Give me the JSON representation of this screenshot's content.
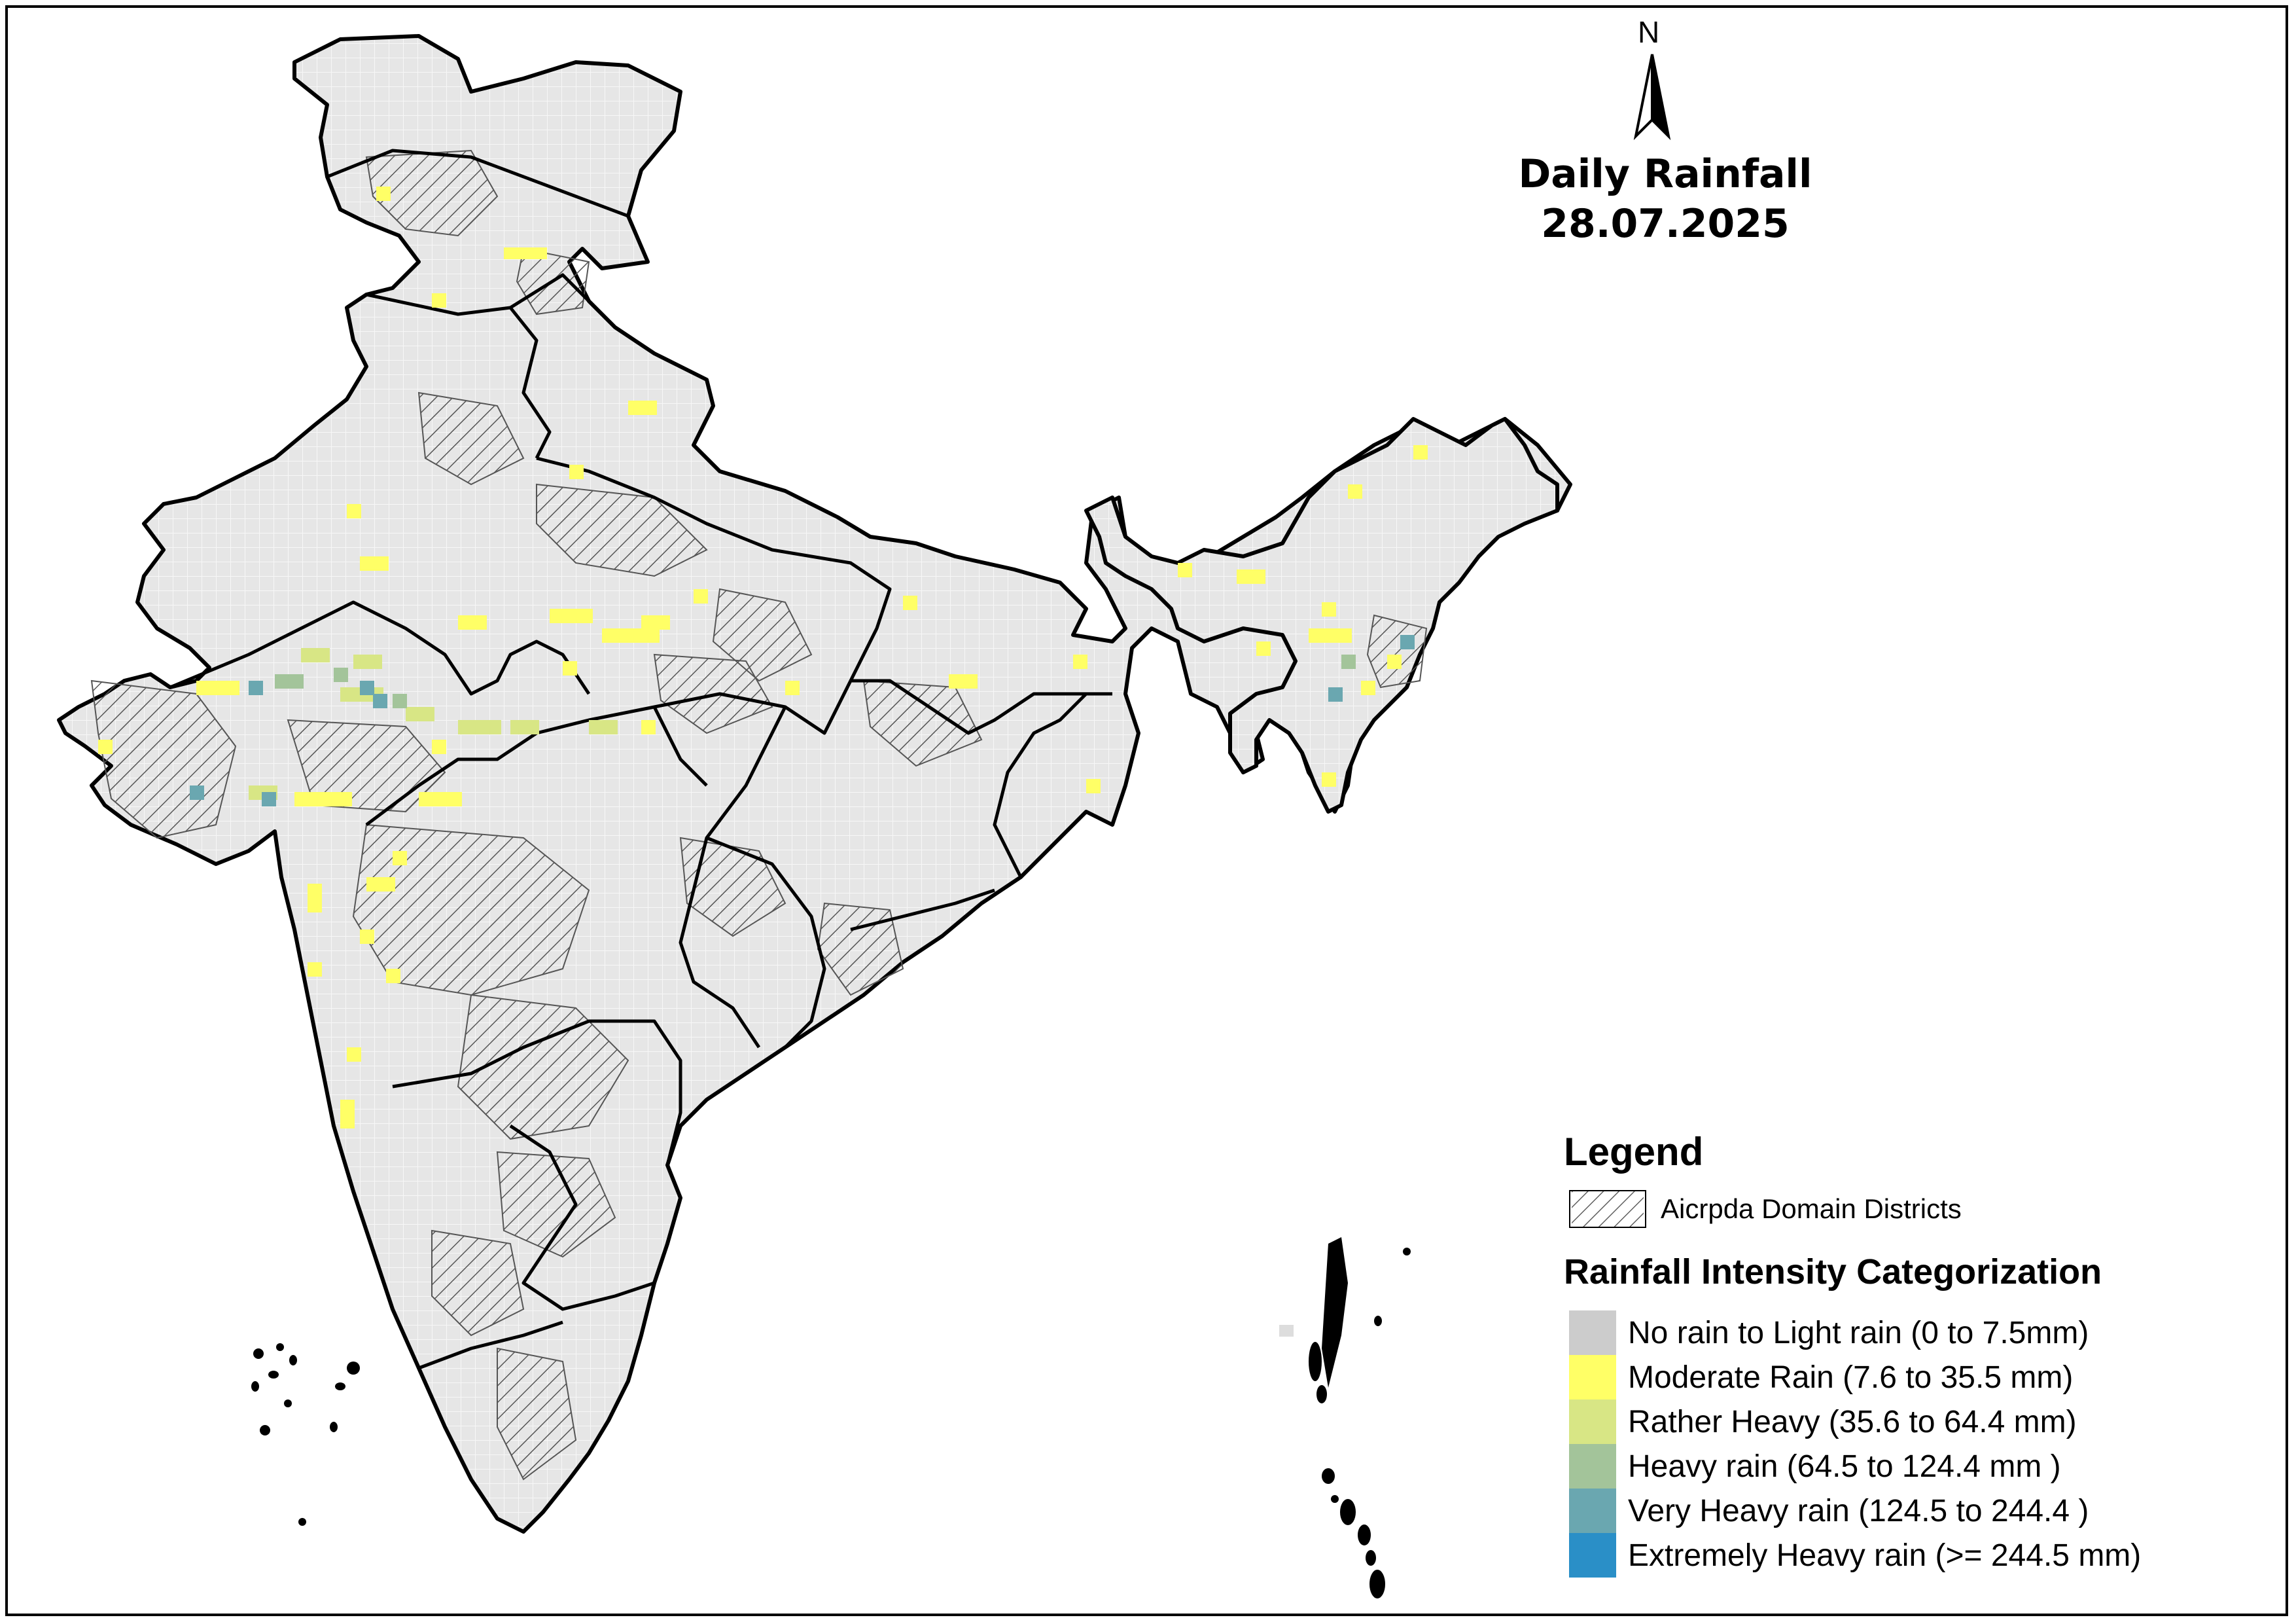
{
  "map": {
    "title": "Daily Rainfall",
    "date": "28.07.2025",
    "north_label": "N",
    "domain": "India",
    "base_fill": "#e3e3e3",
    "border_color": "#000000",
    "district_line_color": "#8a8a8a"
  },
  "legend": {
    "title": "Legend",
    "hatch_label": "Aicrpda Domain Districts",
    "category_title": "Rainfall Intensity Categorization",
    "categories": [
      {
        "label": "No rain to Light rain (0 to 7.5mm)",
        "color": "#cccccc"
      },
      {
        "label": "Moderate Rain (7.6 to 35.5 mm)",
        "color": "#ffff66"
      },
      {
        "label": "Rather Heavy (35.6 to 64.4 mm)",
        "color": "#d8e685"
      },
      {
        "label": "Heavy rain (64.5 to 124.4 mm )",
        "color": "#a3c49a"
      },
      {
        "label": "Very Heavy rain (124.5 to 244.4 )",
        "color": "#6aa7b0"
      },
      {
        "label": "Extremely Heavy rain  (>= 244.5 mm)",
        "color": "#2a8fc7"
      }
    ]
  }
}
